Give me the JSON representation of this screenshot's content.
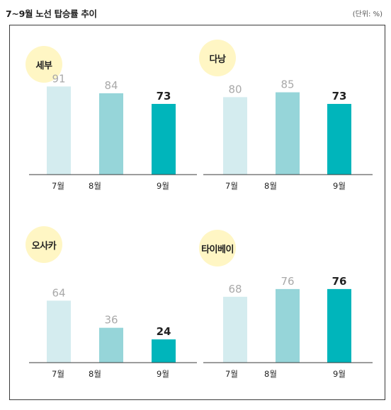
{
  "header": {
    "title": "7~9월 노선 탑승률 추이",
    "unit": "(단위: %)"
  },
  "colors": {
    "jul": "#d4ecef",
    "aug": "#96d5d9",
    "sep": "#00b5bb",
    "circle": "#fff6c4",
    "label_faded": "#a9a9a9",
    "label_strong": "#222222"
  },
  "chart_data": [
    {
      "type": "bar",
      "title": "세부",
      "categories": [
        "7월",
        "8월",
        "9월"
      ],
      "values": [
        91,
        84,
        73
      ],
      "ylim": [
        0,
        100
      ],
      "grid": false
    },
    {
      "type": "bar",
      "title": "다낭",
      "categories": [
        "7월",
        "8월",
        "9월"
      ],
      "values": [
        80,
        85,
        73
      ],
      "ylim": [
        0,
        100
      ],
      "grid": false
    },
    {
      "type": "bar",
      "title": "오사카",
      "categories": [
        "7월",
        "8월",
        "9월"
      ],
      "values": [
        64,
        36,
        24
      ],
      "ylim": [
        0,
        100
      ],
      "grid": false
    },
    {
      "type": "bar",
      "title": "타이베이",
      "categories": [
        "7월",
        "8월",
        "9월"
      ],
      "values": [
        68,
        76,
        76
      ],
      "ylim": [
        0,
        100
      ],
      "grid": false
    }
  ]
}
